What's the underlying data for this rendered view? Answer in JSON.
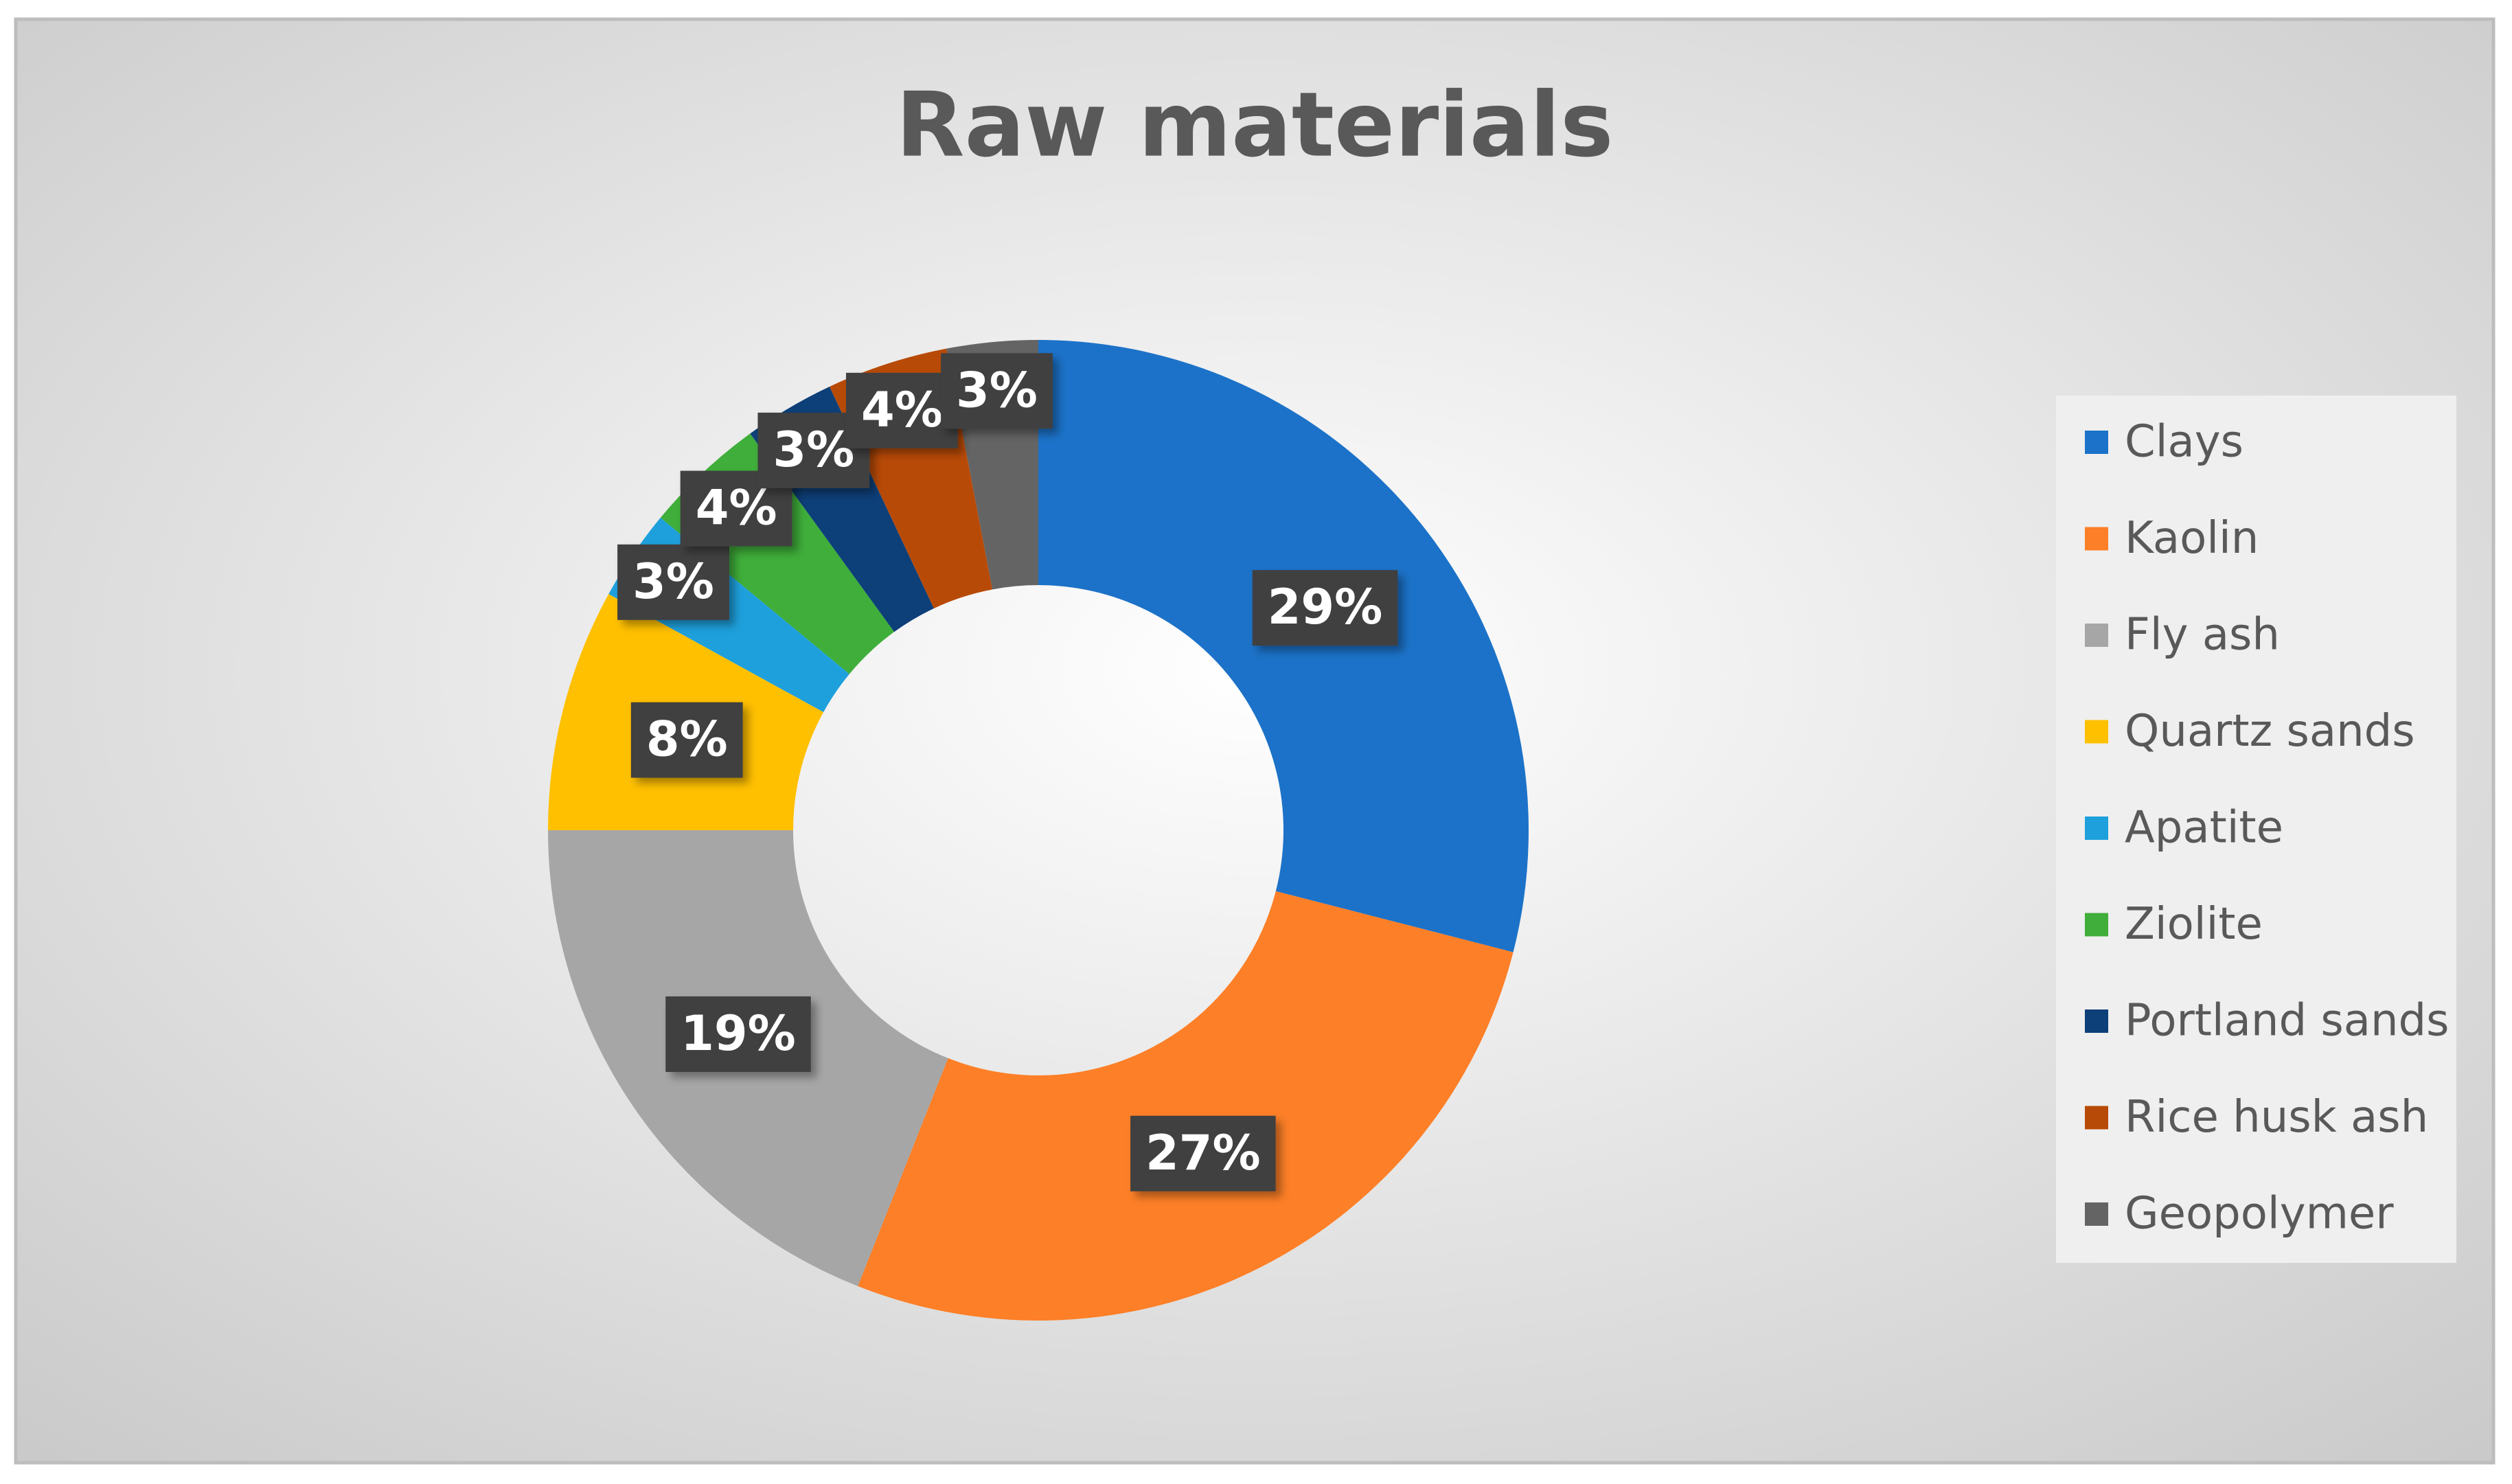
{
  "chart_data": {
    "type": "donut",
    "title": "Raw materials",
    "categories": [
      "Clays",
      "Kaolin",
      "Fly ash",
      "Quartz sands",
      "Apatite",
      "Ziolite",
      "Portland sands",
      "Rice husk ash",
      "Geopolymer"
    ],
    "values": [
      29,
      27,
      19,
      8,
      3,
      4,
      3,
      4,
      3
    ],
    "value_labels": [
      "29%",
      "27%",
      "19%",
      "8%",
      "3%",
      "4%",
      "3%",
      "4%",
      "3%"
    ],
    "colors": [
      "#1c72c8",
      "#fd7f27",
      "#a6a6a6",
      "#ffc000",
      "#1ea0dc",
      "#3fae3a",
      "#0d3f78",
      "#b84a07",
      "#646464"
    ],
    "legend": "right"
  }
}
